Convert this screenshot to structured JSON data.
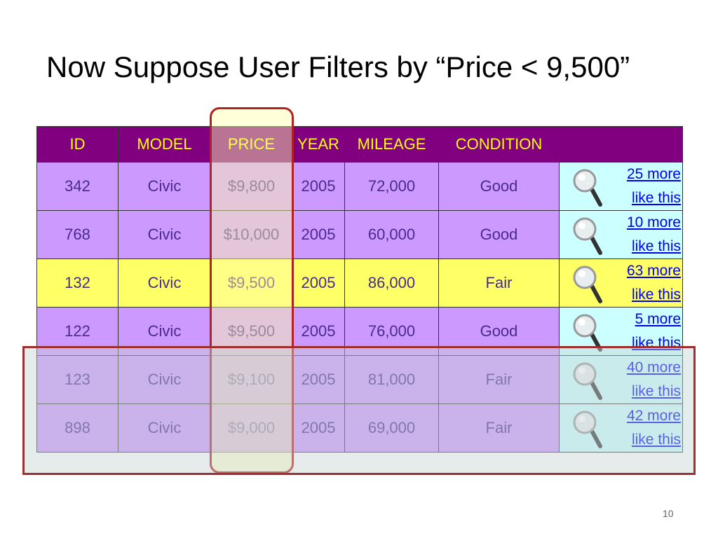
{
  "title": "Now Suppose User Filters by “Price < 9,500”",
  "table": {
    "headers": [
      "ID",
      "MODEL",
      "PRICE",
      "YEAR",
      "MILEAGE",
      "CONDITION",
      ""
    ],
    "rows": [
      [
        "342",
        "Civic",
        "$9,800",
        "2005",
        "72,000",
        "Good",
        "25 more like this"
      ],
      [
        "768",
        "Civic",
        "$10,000",
        "2005",
        "60,000",
        "Good",
        "10 more like this"
      ],
      [
        "132",
        "Civic",
        "$9,500",
        "2005",
        "86,000",
        "Fair",
        "63 more like this"
      ],
      [
        "122",
        "Civic",
        "$9,500",
        "2005",
        "76,000",
        "Good",
        "5 more like this"
      ],
      [
        "123",
        "Civic",
        "$9,100",
        "2005",
        "81,000",
        "Fair",
        "40 more like this"
      ],
      [
        "898",
        "Civic",
        "$9,000",
        "2005",
        "69,000",
        "Fair",
        "42 more like this"
      ]
    ]
  },
  "page_number": "10"
}
